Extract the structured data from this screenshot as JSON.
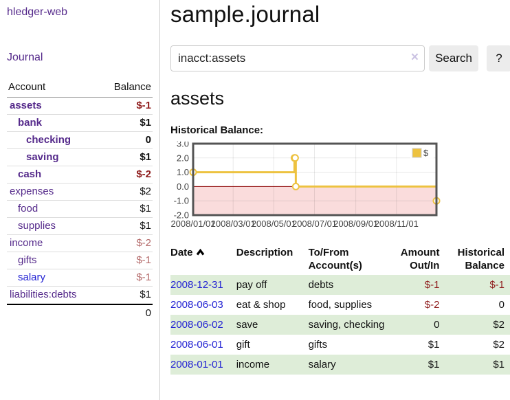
{
  "app": {
    "title": "hledger-web"
  },
  "sidebar": {
    "journal_link": "Journal",
    "accounts_table": {
      "headers": {
        "account": "Account",
        "balance": "Balance"
      },
      "rows": [
        {
          "name": "assets",
          "indent": 1,
          "bold": true,
          "blue": false,
          "balance": "$-1",
          "balance_style": "negative-strong"
        },
        {
          "name": "bank",
          "indent": 2,
          "bold": true,
          "blue": false,
          "balance": "$1",
          "balance_style": "normal"
        },
        {
          "name": "checking",
          "indent": 3,
          "bold": true,
          "blue": false,
          "balance": "0",
          "balance_style": "normal"
        },
        {
          "name": "saving",
          "indent": 3,
          "bold": true,
          "blue": false,
          "balance": "$1",
          "balance_style": "normal"
        },
        {
          "name": "cash",
          "indent": 2,
          "bold": true,
          "blue": false,
          "balance": "$-2",
          "balance_style": "negative-strong"
        },
        {
          "name": "expenses",
          "indent": 1,
          "bold": false,
          "blue": false,
          "balance": "$2",
          "balance_style": "normal"
        },
        {
          "name": "food",
          "indent": 2,
          "bold": false,
          "blue": false,
          "balance": "$1",
          "balance_style": "normal"
        },
        {
          "name": "supplies",
          "indent": 2,
          "bold": false,
          "blue": false,
          "balance": "$1",
          "balance_style": "normal"
        },
        {
          "name": "income",
          "indent": 1,
          "bold": false,
          "blue": false,
          "balance": "$-2",
          "balance_style": "negative-muted"
        },
        {
          "name": "gifts",
          "indent": 2,
          "bold": false,
          "blue": false,
          "balance": "$-1",
          "balance_style": "negative-muted"
        },
        {
          "name": "salary",
          "indent": 2,
          "bold": false,
          "blue": true,
          "balance": "$-1",
          "balance_style": "negative-muted"
        },
        {
          "name": "liabilities:debts",
          "indent": 1,
          "bold": false,
          "blue": false,
          "balance": "$1",
          "balance_style": "normal"
        }
      ],
      "total": "0"
    }
  },
  "header": {
    "title": "sample.journal"
  },
  "search": {
    "value": "inacct:assets",
    "clear_icon": "×",
    "button_label": "Search",
    "help_label": "?"
  },
  "account_page": {
    "title": "assets",
    "chart_label": "Historical Balance:"
  },
  "chart_data": {
    "type": "line",
    "style": "step",
    "title": "Historical Balance",
    "ylim": [
      -2,
      3
    ],
    "xlim_days": [
      0,
      365
    ],
    "y_ticks": [
      3.0,
      2.0,
      1.0,
      0.0,
      -1.0,
      -2.0
    ],
    "x_ticks": [
      "2008/01/01",
      "2008/03/01",
      "2008/05/01",
      "2008/07/01",
      "2008/09/01",
      "2008/11/01"
    ],
    "x_tick_days": [
      0,
      60,
      121,
      182,
      244,
      305
    ],
    "series": [
      {
        "name": "$",
        "color": "#edc240",
        "points": [
          {
            "date": "2008-01-01",
            "day": 0,
            "value": 1
          },
          {
            "date": "2008-06-01",
            "day": 152,
            "value": 2
          },
          {
            "date": "2008-06-02",
            "day": 153,
            "value": 2
          },
          {
            "date": "2008-06-03",
            "day": 154,
            "value": 0
          },
          {
            "date": "2008-12-31",
            "day": 365,
            "value": -1
          }
        ]
      }
    ],
    "legend": {
      "label": "$",
      "position": "top-right"
    },
    "colors": {
      "negative_region": "#fadcdc",
      "zero_line": "#8b0000",
      "border": "#545454",
      "grid": "rgba(0,0,0,0.09)",
      "tick_text": "#444444"
    }
  },
  "register_table": {
    "headers": {
      "date": "Date",
      "description": "Description",
      "accounts": "To/From Account(s)",
      "amount": "Amount Out/In",
      "balance": "Historical Balance"
    },
    "rows": [
      {
        "date": "2008-12-31",
        "description": "pay off",
        "accounts": "debts",
        "amount": "$-1",
        "amount_neg": true,
        "balance": "$-1",
        "balance_neg": true
      },
      {
        "date": "2008-06-03",
        "description": "eat & shop",
        "accounts": "food, supplies",
        "amount": "$-2",
        "amount_neg": true,
        "balance": "0",
        "balance_neg": false
      },
      {
        "date": "2008-06-02",
        "description": "save",
        "accounts": "saving, checking",
        "amount": "0",
        "amount_neg": false,
        "balance": "$2",
        "balance_neg": false
      },
      {
        "date": "2008-06-01",
        "description": "gift",
        "accounts": "gifts",
        "amount": "$1",
        "amount_neg": false,
        "balance": "$2",
        "balance_neg": false
      },
      {
        "date": "2008-01-01",
        "description": "income",
        "accounts": "salary",
        "amount": "$1",
        "amount_neg": false,
        "balance": "$1",
        "balance_neg": false
      }
    ]
  }
}
